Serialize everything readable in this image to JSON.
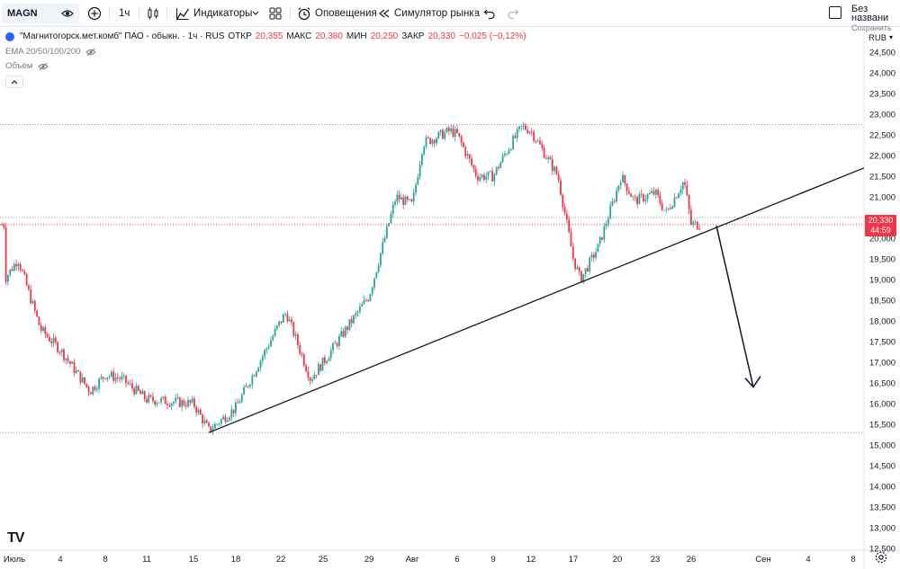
{
  "toolbar": {
    "symbol": "MAGN",
    "interval": "1ч",
    "indicators_label": "Индикаторы",
    "alerts_label": "Оповещения",
    "replay_label": "Симулятор рынка",
    "layout_name": "Без названи",
    "layout_status": "Сохранить"
  },
  "legend": {
    "title": "\"Магнитогорск.мет.комб\" ПАО - обыкн. · 1ч · RUS",
    "open_label": "ОТКР",
    "open_value": "20,355",
    "high_label": "МАКС",
    "high_value": "20,380",
    "low_label": "МИН",
    "low_value": "20,250",
    "close_label": "ЗАКР",
    "close_value": "20,330",
    "change_value": "−0,025 (−0,12%)",
    "ema_label": "EMA 20/50/100/200",
    "volume_label": "Объём"
  },
  "price_axis": {
    "currency": "RUB",
    "ticks": [
      "24,500",
      "24,000",
      "23,500",
      "23,000",
      "22,500",
      "22,000",
      "21,500",
      "21,000",
      "20,500",
      "20,000",
      "19,500",
      "19,000",
      "18,500",
      "18,000",
      "17,500",
      "17,000",
      "16,500",
      "16,000",
      "15,500",
      "15,000",
      "14,500",
      "14,000",
      "13,500",
      "13,000",
      "12,500"
    ],
    "last_price": "20,330",
    "countdown": "44:59"
  },
  "time_axis": {
    "labels": [
      "Июль",
      "4",
      "8",
      "11",
      "15",
      "18",
      "22",
      "25",
      "29",
      "Авг",
      "6",
      "9",
      "12",
      "17",
      "20",
      "23",
      "26",
      "Сен",
      "4",
      "8"
    ]
  },
  "colors": {
    "up": "#26a69a",
    "down": "#f23645",
    "accent": "#2962ff",
    "trendline": "#131722"
  },
  "chart_data": {
    "type": "candlestick",
    "title": "\"Магнитогорск.мет.комб\" ПАО - обыкн. · 1ч · RUS",
    "ylim": [
      12250,
      24750
    ],
    "path_x": [
      "Июль",
      "4",
      "8",
      "11",
      "15",
      "18",
      "22",
      "25",
      "29",
      "Авг",
      "6",
      "9",
      "12",
      "17",
      "20",
      "23",
      "26"
    ],
    "path_close": [
      19000,
      17300,
      16700,
      16100,
      16000,
      15900,
      18000,
      17000,
      18600,
      20800,
      22500,
      21500,
      22600,
      19500,
      21200,
      21100,
      20330
    ],
    "horizontal_levels": [
      22750,
      20500,
      15300
    ],
    "trendline": {
      "from": {
        "x": "16",
        "y": 15300
      },
      "to": {
        "x": "Сен",
        "y": 21700
      }
    },
    "projection_arrow": {
      "from": {
        "x": "27",
        "y": 20300
      },
      "to": {
        "x": "30",
        "y": 16400
      }
    }
  }
}
